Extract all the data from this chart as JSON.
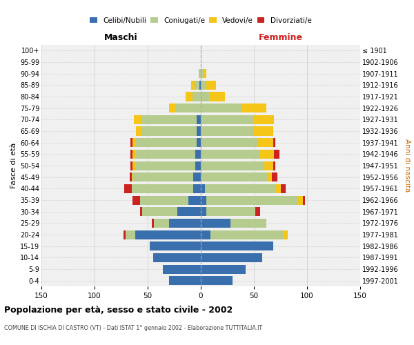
{
  "age_groups": [
    "100+",
    "95-99",
    "90-94",
    "85-89",
    "80-84",
    "75-79",
    "70-74",
    "65-69",
    "60-64",
    "55-59",
    "50-54",
    "45-49",
    "40-44",
    "35-39",
    "30-34",
    "25-29",
    "20-24",
    "15-19",
    "10-14",
    "5-9",
    "0-4"
  ],
  "birth_years": [
    "≤ 1901",
    "1902-1906",
    "1907-1911",
    "1912-1916",
    "1917-1921",
    "1922-1926",
    "1927-1931",
    "1932-1936",
    "1937-1941",
    "1942-1946",
    "1947-1951",
    "1952-1956",
    "1957-1961",
    "1962-1966",
    "1967-1971",
    "1972-1976",
    "1977-1981",
    "1982-1986",
    "1987-1991",
    "1992-1996",
    "1997-2001"
  ],
  "males": {
    "celibi": [
      0,
      0,
      0,
      1,
      0,
      0,
      4,
      4,
      4,
      5,
      5,
      7,
      7,
      12,
      22,
      30,
      62,
      48,
      45,
      36,
      30
    ],
    "coniugati": [
      0,
      0,
      2,
      5,
      8,
      24,
      52,
      52,
      57,
      56,
      57,
      57,
      58,
      45,
      33,
      14,
      9,
      0,
      0,
      0,
      0
    ],
    "vedovi": [
      0,
      0,
      0,
      3,
      6,
      6,
      7,
      5,
      3,
      3,
      2,
      1,
      0,
      0,
      0,
      0,
      0,
      0,
      0,
      0,
      0
    ],
    "divorziati": [
      0,
      0,
      0,
      0,
      0,
      0,
      0,
      0,
      2,
      2,
      2,
      2,
      7,
      7,
      2,
      2,
      2,
      0,
      0,
      0,
      0
    ]
  },
  "females": {
    "nubili": [
      0,
      0,
      0,
      0,
      0,
      0,
      0,
      0,
      0,
      0,
      0,
      0,
      4,
      5,
      5,
      28,
      9,
      68,
      58,
      42,
      30
    ],
    "coniugate": [
      0,
      0,
      2,
      5,
      8,
      38,
      50,
      50,
      54,
      56,
      60,
      63,
      67,
      86,
      46,
      34,
      68,
      0,
      0,
      0,
      0
    ],
    "vedove": [
      0,
      0,
      3,
      9,
      15,
      24,
      19,
      18,
      14,
      13,
      8,
      4,
      4,
      5,
      0,
      0,
      5,
      0,
      0,
      0,
      0
    ],
    "divorziate": [
      0,
      0,
      0,
      0,
      0,
      0,
      0,
      0,
      2,
      5,
      2,
      5,
      5,
      2,
      5,
      0,
      0,
      0,
      0,
      0,
      0
    ]
  },
  "colors": {
    "celibi": "#3a6fad",
    "coniugati": "#b5cc8e",
    "vedovi": "#f5c518",
    "divorziati": "#cc2222"
  },
  "xlim": 150,
  "title": "Popolazione per età, sesso e stato civile - 2002",
  "subtitle": "COMUNE DI ISCHIA DI CASTRO (VT) - Dati ISTAT 1° gennaio 2002 - Elaborazione TUTTITALIA.IT",
  "ylabel_left": "Fasce di età",
  "ylabel_right": "Anni di nascita",
  "xlabel_left": "Maschi",
  "xlabel_right": "Femmine"
}
